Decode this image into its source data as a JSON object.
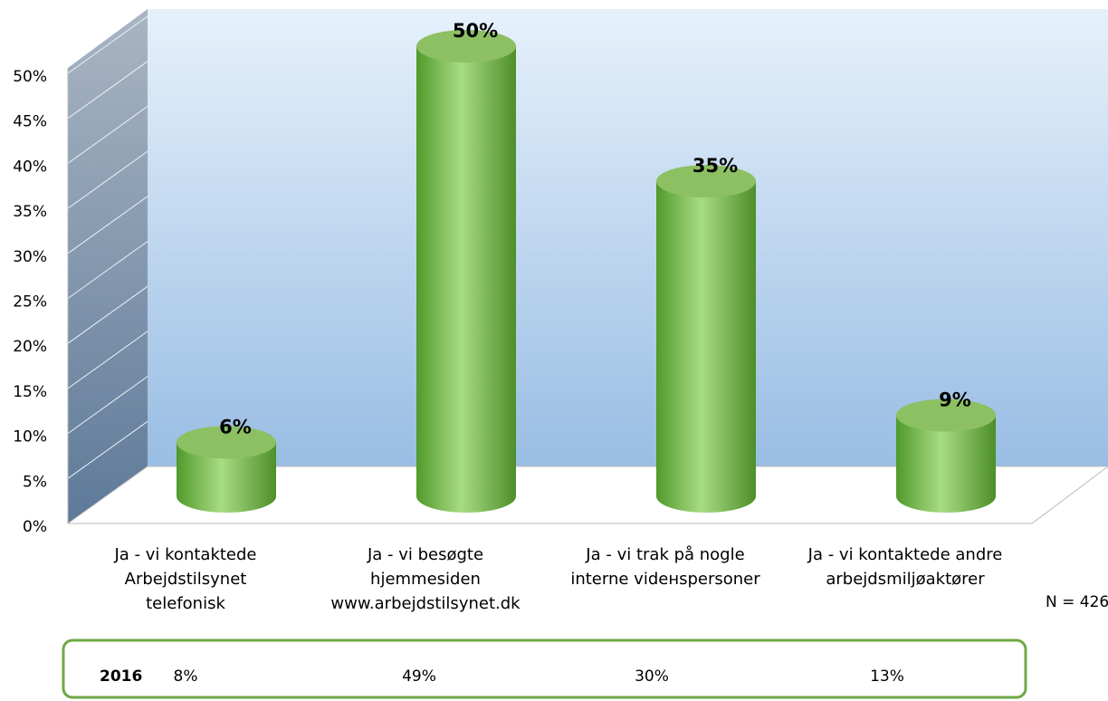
{
  "chart_data": {
    "type": "cylinder",
    "categories": [
      [
        "Ja - vi kontaktede",
        "Arbejdstilsynet",
        "telefonisk"
      ],
      [
        "Ja - vi besøgte",
        "hjemmesiden",
        "www.arbejdstilsynet.dk"
      ],
      [
        "Ja - vi trak på nogle",
        "interne vidенspersoner"
      ],
      [
        "Ja - vi kontaktede andre",
        "arbejdsmiljøaktører"
      ]
    ],
    "values": [
      6,
      50,
      35,
      9
    ],
    "value_labels": [
      "6%",
      "50%",
      "35%",
      "9%"
    ],
    "color": "#6fb13f",
    "ylim": [
      0,
      50
    ],
    "yticks": [
      {
        "value": 0,
        "label": "0%"
      },
      {
        "value": 5,
        "label": "5%"
      },
      {
        "value": 10,
        "label": "10%"
      },
      {
        "value": 15,
        "label": "15%"
      },
      {
        "value": 20,
        "label": "20%"
      },
      {
        "value": 25,
        "label": "25%"
      },
      {
        "value": 30,
        "label": "30%"
      },
      {
        "value": 35,
        "label": "35%"
      },
      {
        "value": 40,
        "label": "40%"
      },
      {
        "value": 45,
        "label": "45%"
      },
      {
        "value": 50,
        "label": "50%"
      }
    ],
    "grid": true,
    "annotation": "N = 426",
    "comparison_row": {
      "label": "2016",
      "values": [
        "8%",
        "49%",
        "30%",
        "13%"
      ]
    }
  }
}
